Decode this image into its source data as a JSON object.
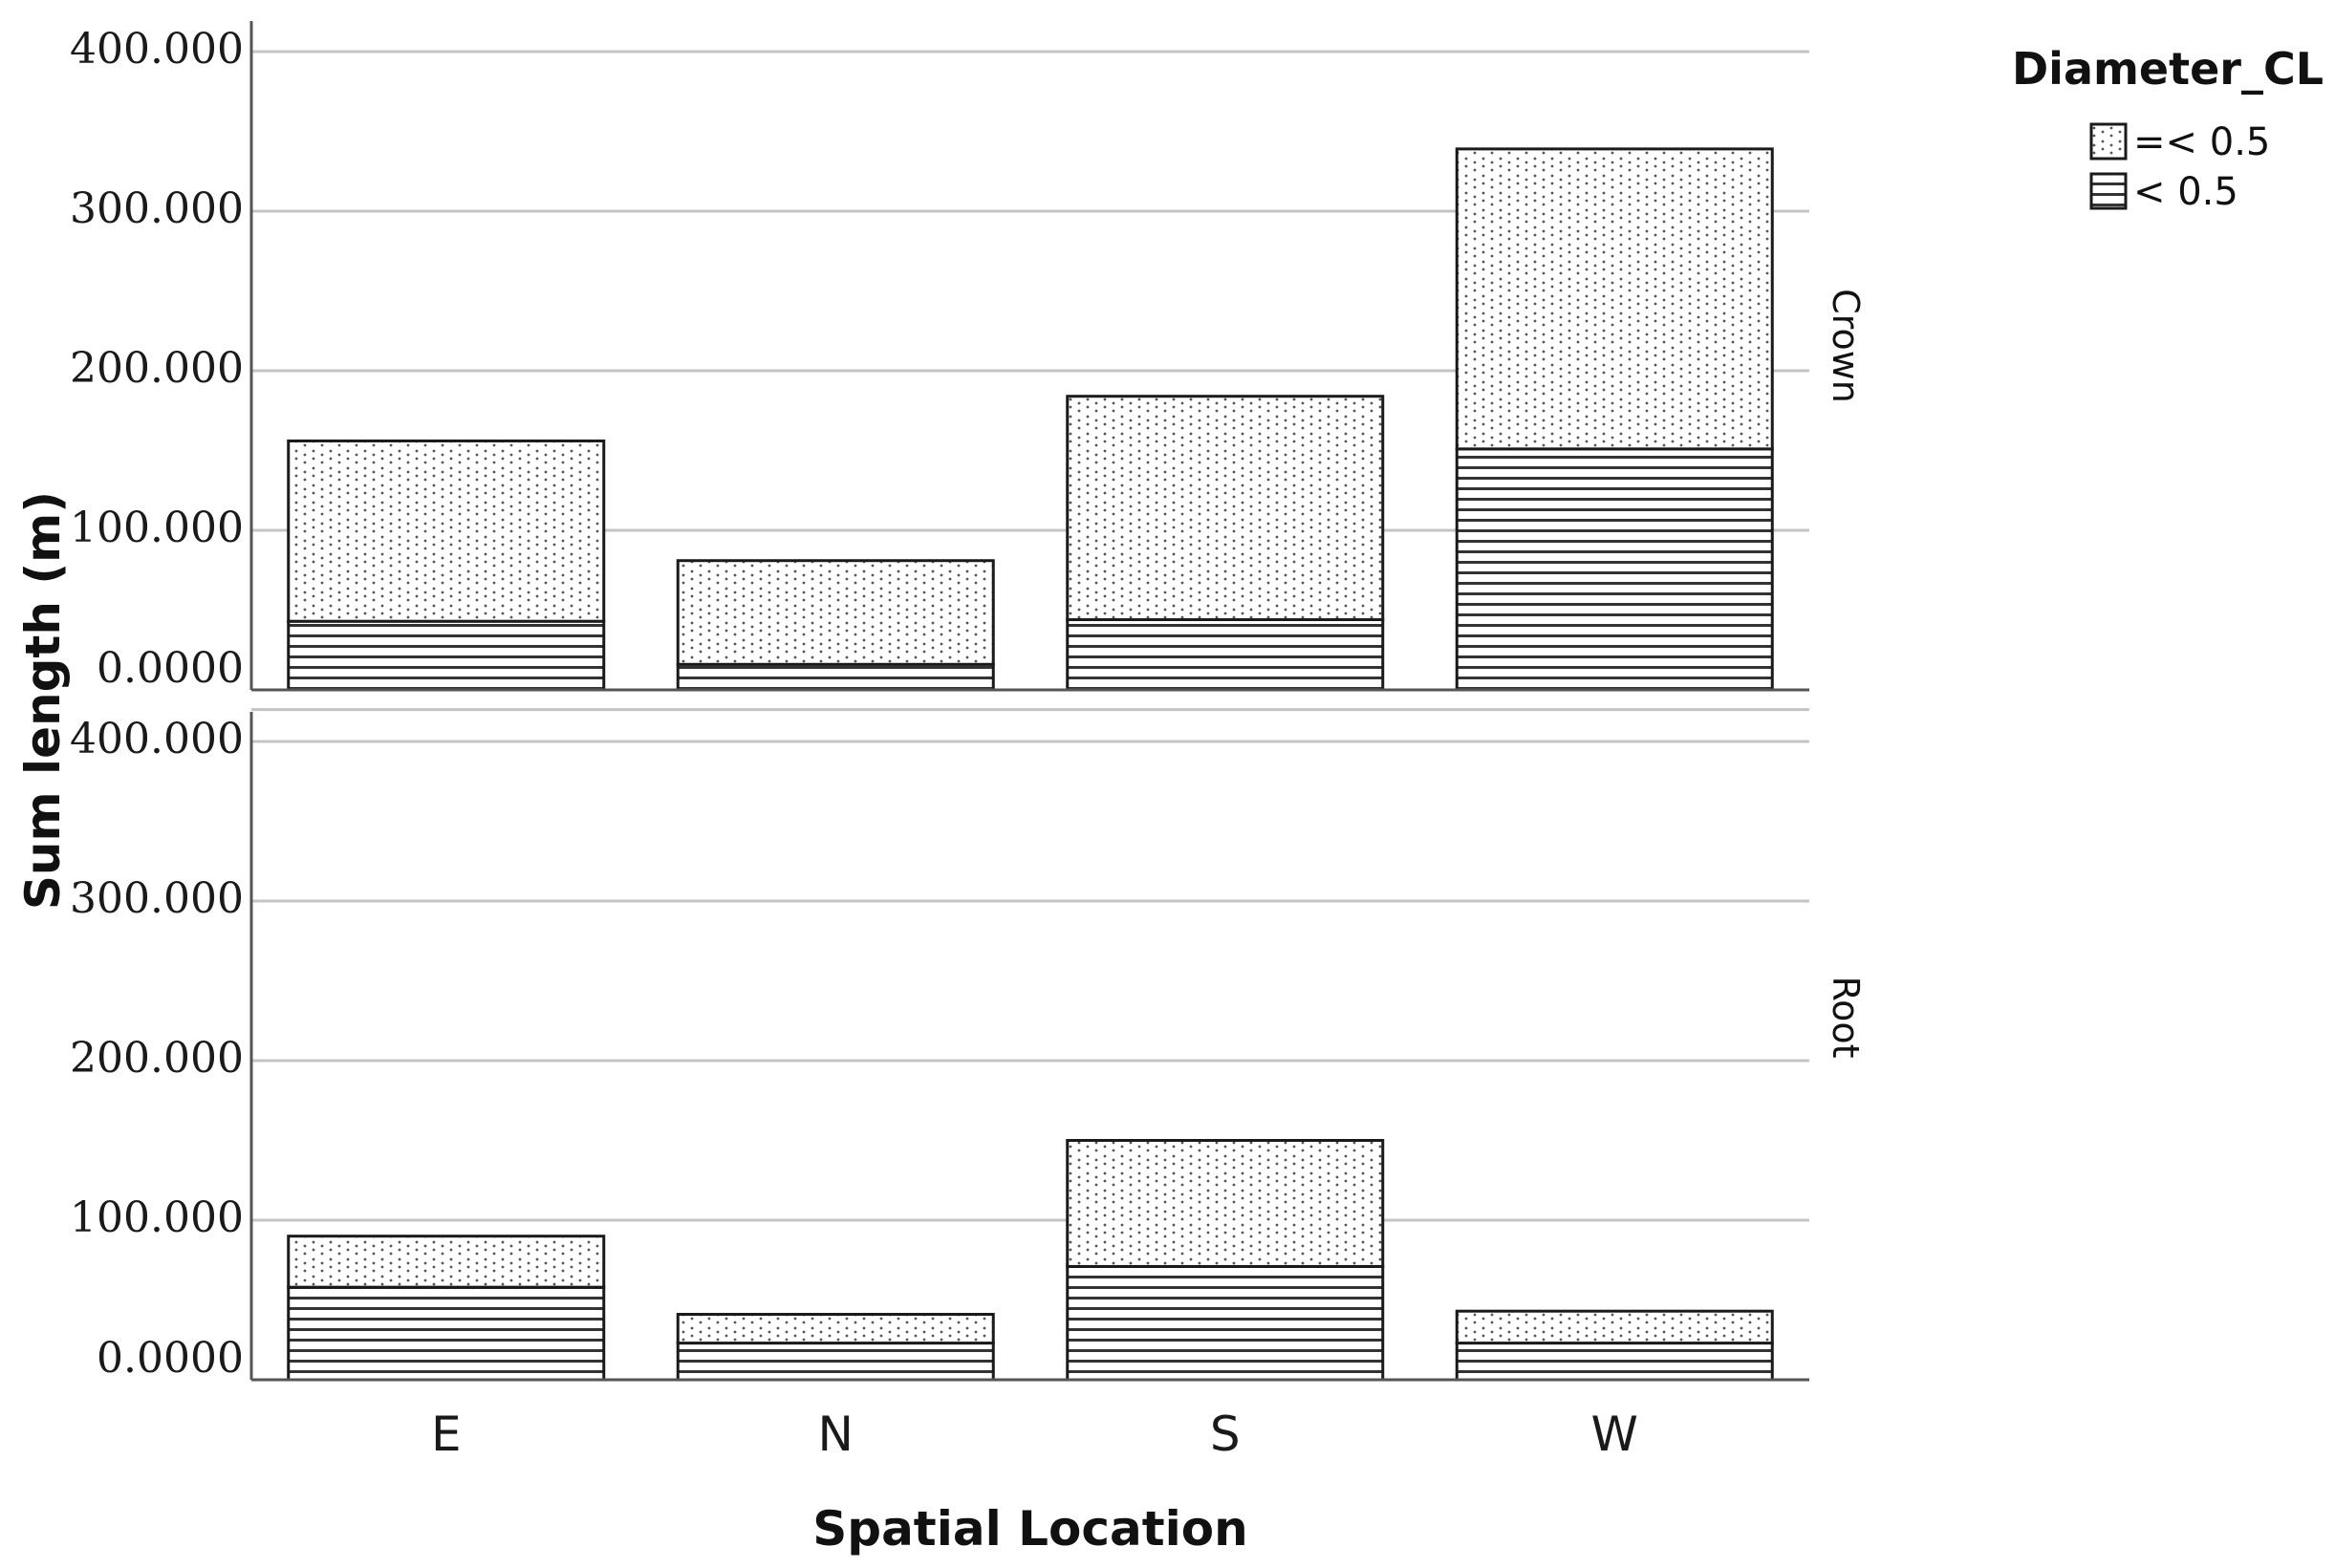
{
  "chart_data": {
    "type": "bar",
    "stacked": true,
    "categories": [
      "E",
      "N",
      "S",
      "W"
    ],
    "xlabel": "Spatial Location",
    "ylabel": "Sum length (m)",
    "ylim": [
      0,
      420
    ],
    "y_ticks": [
      {
        "value": 0,
        "label": "0.0000"
      },
      {
        "value": 100,
        "label": "100.000"
      },
      {
        "value": 200,
        "label": "200.000"
      },
      {
        "value": 300,
        "label": "300.000"
      },
      {
        "value": 400,
        "label": "400.000"
      }
    ],
    "legend": {
      "title": "Diameter_CL",
      "placement": "top-right",
      "entries": [
        {
          "label": "=< 0.5",
          "pattern": "dots"
        },
        {
          "label": "< 0.5",
          "pattern": "horizontal-lines"
        }
      ]
    },
    "grid": true,
    "panels": [
      {
        "label": "Crown",
        "series": [
          {
            "name": "< 0.5",
            "pattern": "horizontal-lines",
            "values": [
              43,
              16,
              44,
              151
            ]
          },
          {
            "name": "=< 0.5",
            "pattern": "dots",
            "values": [
              113,
              65,
              140,
              188
            ]
          }
        ]
      },
      {
        "label": "Root",
        "series": [
          {
            "name": "< 0.5",
            "pattern": "horizontal-lines",
            "values": [
              58,
              23,
              71,
              23
            ]
          },
          {
            "name": "=< 0.5",
            "pattern": "dots",
            "values": [
              32,
              18,
              79,
              20
            ]
          }
        ]
      }
    ]
  }
}
